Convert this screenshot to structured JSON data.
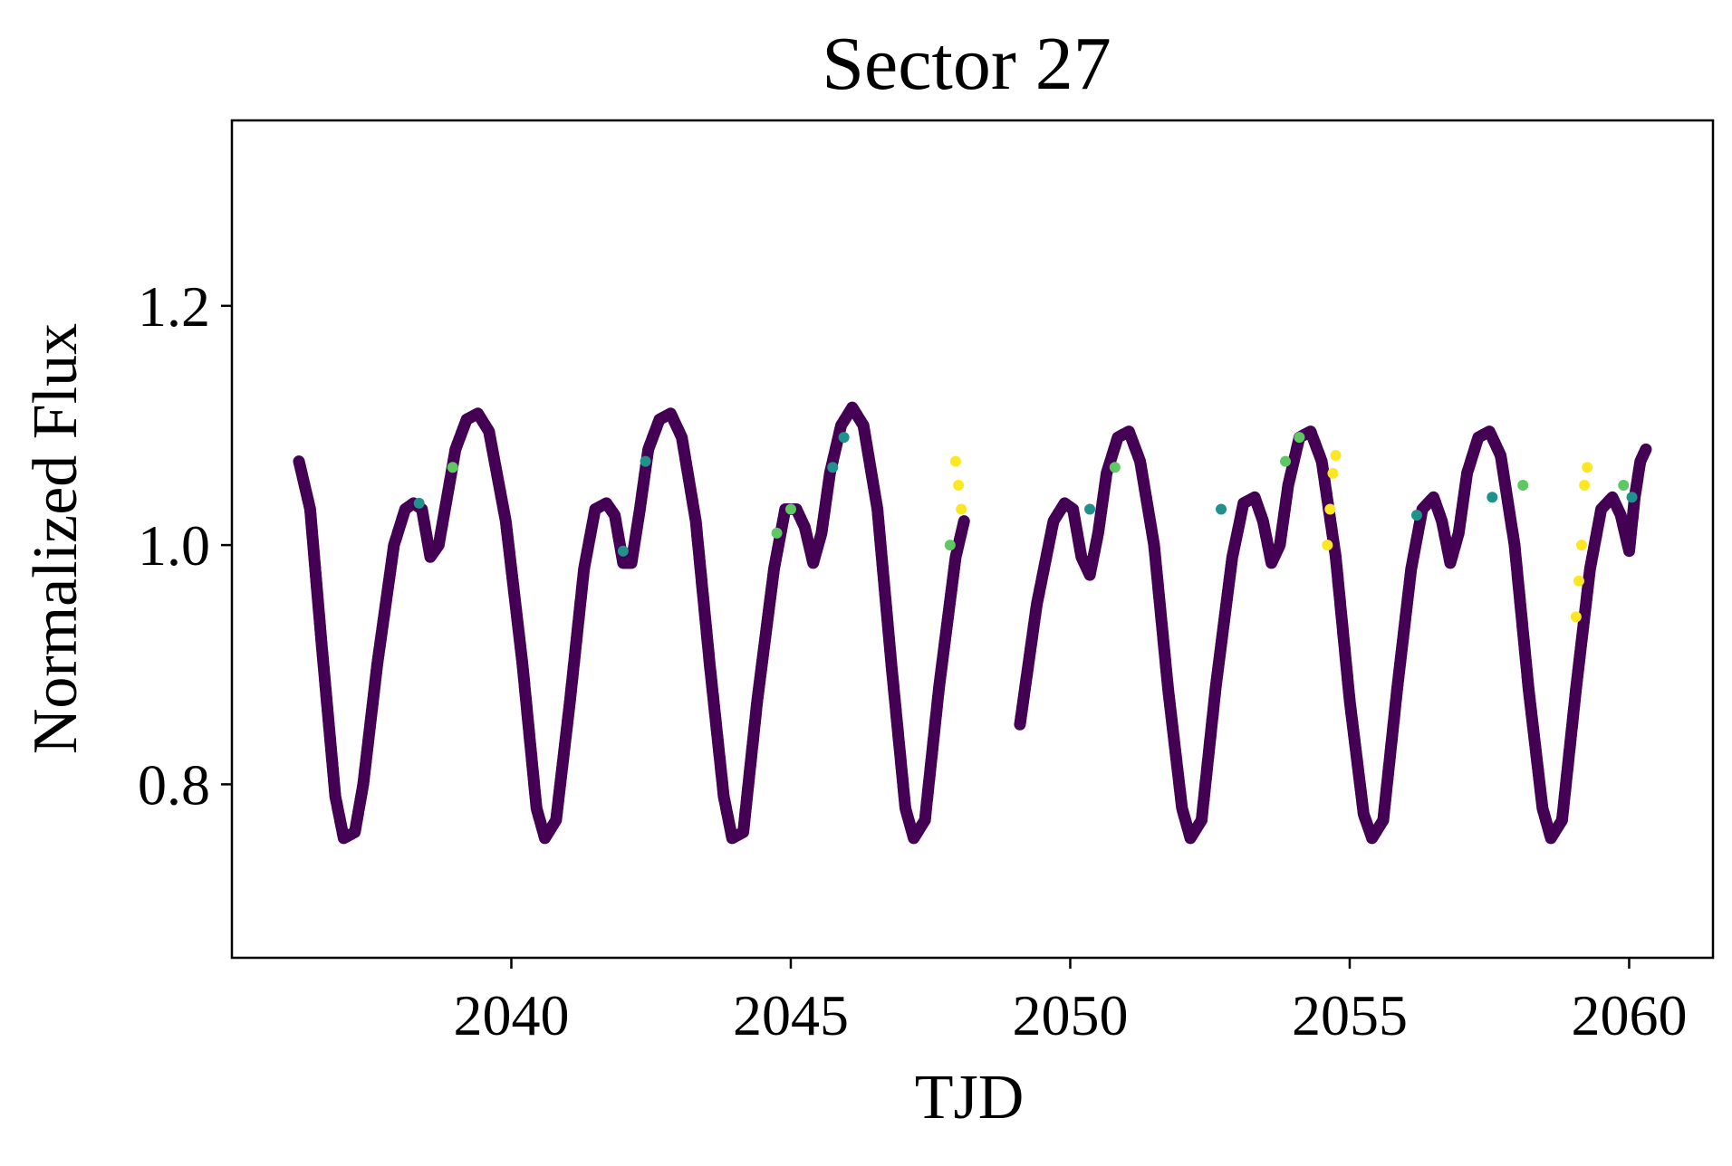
{
  "chart_data": {
    "type": "scatter",
    "title": "Sector 27",
    "xlabel": "TJD",
    "ylabel": "Normalized Flux",
    "xlim": [
      2035.0,
      2061.5
    ],
    "ylim": [
      0.655,
      1.355
    ],
    "xticks": [
      2040,
      2045,
      2050,
      2055,
      2060
    ],
    "yticks": [
      0.8,
      1.0,
      1.2
    ],
    "ytick_labels": [
      "0.8",
      "1.0",
      "1.2"
    ],
    "grid": false,
    "legend": "none",
    "colormap": "viridis",
    "colors": {
      "base": "#440154",
      "mid": "#21918c",
      "high": "#5ec962",
      "max": "#fde725"
    },
    "segments": [
      {
        "t_start": 2036.2,
        "t_end": 2048.1,
        "points": [
          [
            2036.2,
            1.07
          ],
          [
            2036.4,
            1.03
          ],
          [
            2036.6,
            0.92
          ],
          [
            2036.85,
            0.79
          ],
          [
            2037.0,
            0.755
          ],
          [
            2037.2,
            0.76
          ],
          [
            2037.35,
            0.8
          ],
          [
            2037.6,
            0.9
          ],
          [
            2037.9,
            1.0
          ],
          [
            2038.1,
            1.03
          ],
          [
            2038.25,
            1.035
          ],
          [
            2038.4,
            1.03
          ],
          [
            2038.55,
            0.99
          ],
          [
            2038.7,
            1.0
          ],
          [
            2038.85,
            1.04
          ],
          [
            2039.0,
            1.08
          ],
          [
            2039.2,
            1.105
          ],
          [
            2039.4,
            1.11
          ],
          [
            2039.6,
            1.095
          ],
          [
            2039.9,
            1.02
          ],
          [
            2040.2,
            0.9
          ],
          [
            2040.45,
            0.78
          ],
          [
            2040.6,
            0.755
          ],
          [
            2040.8,
            0.77
          ],
          [
            2041.05,
            0.87
          ],
          [
            2041.3,
            0.98
          ],
          [
            2041.5,
            1.03
          ],
          [
            2041.7,
            1.035
          ],
          [
            2041.85,
            1.025
          ],
          [
            2042.0,
            0.985
          ],
          [
            2042.15,
            0.985
          ],
          [
            2042.3,
            1.03
          ],
          [
            2042.45,
            1.08
          ],
          [
            2042.65,
            1.105
          ],
          [
            2042.85,
            1.11
          ],
          [
            2043.05,
            1.09
          ],
          [
            2043.3,
            1.02
          ],
          [
            2043.55,
            0.9
          ],
          [
            2043.8,
            0.79
          ],
          [
            2043.95,
            0.755
          ],
          [
            2044.15,
            0.76
          ],
          [
            2044.4,
            0.87
          ],
          [
            2044.7,
            0.98
          ],
          [
            2044.9,
            1.03
          ],
          [
            2045.1,
            1.03
          ],
          [
            2045.25,
            1.015
          ],
          [
            2045.4,
            0.985
          ],
          [
            2045.55,
            1.01
          ],
          [
            2045.7,
            1.06
          ],
          [
            2045.9,
            1.1
          ],
          [
            2046.1,
            1.115
          ],
          [
            2046.3,
            1.1
          ],
          [
            2046.55,
            1.03
          ],
          [
            2046.8,
            0.9
          ],
          [
            2047.05,
            0.78
          ],
          [
            2047.2,
            0.755
          ],
          [
            2047.4,
            0.77
          ],
          [
            2047.65,
            0.88
          ],
          [
            2047.95,
            0.99
          ],
          [
            2048.1,
            1.02
          ]
        ]
      },
      {
        "t_start": 2049.1,
        "t_end": 2060.3,
        "points": [
          [
            2049.1,
            0.85
          ],
          [
            2049.4,
            0.95
          ],
          [
            2049.7,
            1.02
          ],
          [
            2049.9,
            1.035
          ],
          [
            2050.05,
            1.03
          ],
          [
            2050.2,
            0.99
          ],
          [
            2050.35,
            0.975
          ],
          [
            2050.5,
            1.01
          ],
          [
            2050.65,
            1.06
          ],
          [
            2050.85,
            1.09
          ],
          [
            2051.05,
            1.095
          ],
          [
            2051.25,
            1.07
          ],
          [
            2051.5,
            1.0
          ],
          [
            2051.75,
            0.88
          ],
          [
            2052.0,
            0.78
          ],
          [
            2052.15,
            0.755
          ],
          [
            2052.35,
            0.77
          ],
          [
            2052.6,
            0.88
          ],
          [
            2052.9,
            0.99
          ],
          [
            2053.1,
            1.035
          ],
          [
            2053.3,
            1.04
          ],
          [
            2053.45,
            1.02
          ],
          [
            2053.6,
            0.985
          ],
          [
            2053.75,
            1.0
          ],
          [
            2053.9,
            1.05
          ],
          [
            2054.1,
            1.09
          ],
          [
            2054.3,
            1.095
          ],
          [
            2054.5,
            1.07
          ],
          [
            2054.75,
            0.99
          ],
          [
            2055.0,
            0.87
          ],
          [
            2055.25,
            0.775
          ],
          [
            2055.4,
            0.755
          ],
          [
            2055.6,
            0.77
          ],
          [
            2055.85,
            0.88
          ],
          [
            2056.1,
            0.98
          ],
          [
            2056.3,
            1.03
          ],
          [
            2056.5,
            1.04
          ],
          [
            2056.65,
            1.02
          ],
          [
            2056.8,
            0.985
          ],
          [
            2056.95,
            1.01
          ],
          [
            2057.1,
            1.06
          ],
          [
            2057.3,
            1.09
          ],
          [
            2057.5,
            1.095
          ],
          [
            2057.7,
            1.075
          ],
          [
            2057.95,
            1.0
          ],
          [
            2058.2,
            0.88
          ],
          [
            2058.45,
            0.78
          ],
          [
            2058.6,
            0.755
          ],
          [
            2058.8,
            0.77
          ],
          [
            2059.05,
            0.88
          ],
          [
            2059.3,
            0.98
          ],
          [
            2059.5,
            1.03
          ],
          [
            2059.7,
            1.04
          ],
          [
            2059.85,
            1.025
          ],
          [
            2060.0,
            0.995
          ],
          [
            2060.1,
            1.04
          ],
          [
            2060.2,
            1.07
          ],
          [
            2060.3,
            1.08
          ]
        ]
      }
    ],
    "highlight_points": [
      [
        2038.35,
        1.035,
        "mid"
      ],
      [
        2038.95,
        1.065,
        "high"
      ],
      [
        2042.0,
        0.995,
        "mid"
      ],
      [
        2042.4,
        1.07,
        "mid"
      ],
      [
        2044.75,
        1.01,
        "high"
      ],
      [
        2045.0,
        1.03,
        "high"
      ],
      [
        2045.75,
        1.065,
        "mid"
      ],
      [
        2045.95,
        1.09,
        "mid"
      ],
      [
        2047.85,
        1.0,
        "high"
      ],
      [
        2047.95,
        1.07,
        "max"
      ],
      [
        2048.0,
        1.05,
        "max"
      ],
      [
        2048.05,
        1.03,
        "max"
      ],
      [
        2050.35,
        1.03,
        "mid"
      ],
      [
        2050.8,
        1.065,
        "high"
      ],
      [
        2052.7,
        1.03,
        "mid"
      ],
      [
        2053.85,
        1.07,
        "high"
      ],
      [
        2054.1,
        1.09,
        "high"
      ],
      [
        2054.6,
        1.0,
        "max"
      ],
      [
        2054.65,
        1.03,
        "max"
      ],
      [
        2054.7,
        1.06,
        "max"
      ],
      [
        2054.75,
        1.075,
        "max"
      ],
      [
        2056.2,
        1.025,
        "mid"
      ],
      [
        2057.55,
        1.04,
        "mid"
      ],
      [
        2058.1,
        1.05,
        "high"
      ],
      [
        2059.05,
        0.94,
        "max"
      ],
      [
        2059.1,
        0.97,
        "max"
      ],
      [
        2059.15,
        1.0,
        "max"
      ],
      [
        2059.2,
        1.05,
        "max"
      ],
      [
        2059.25,
        1.065,
        "max"
      ],
      [
        2059.9,
        1.05,
        "high"
      ],
      [
        2060.05,
        1.04,
        "mid"
      ]
    ]
  }
}
